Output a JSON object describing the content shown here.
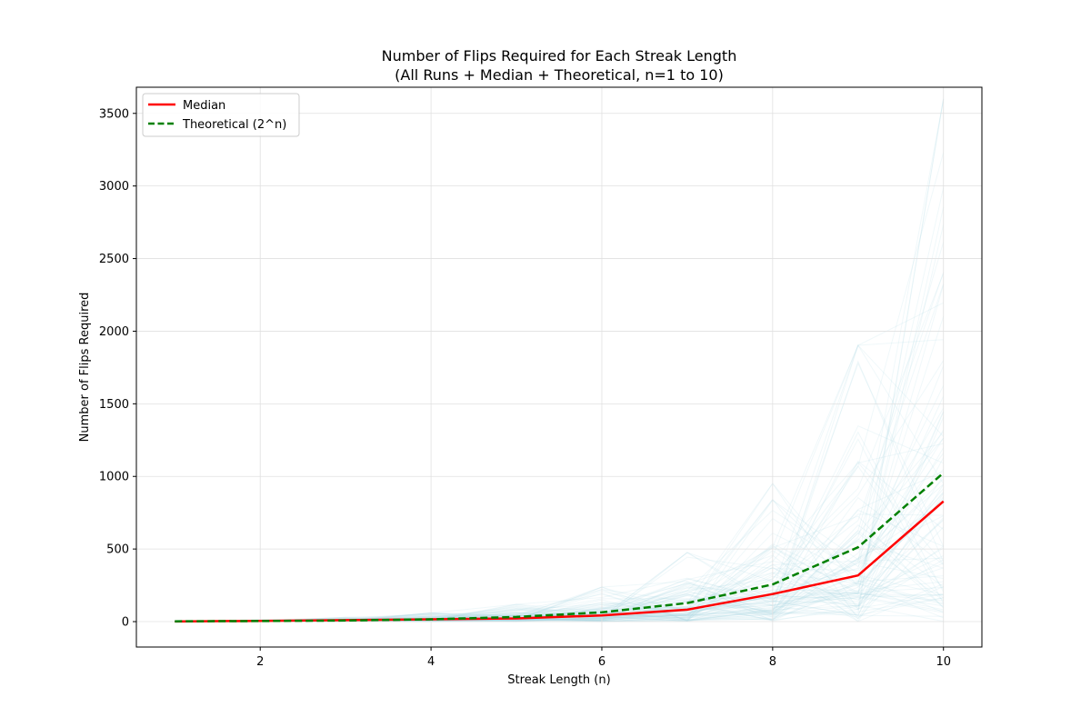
{
  "chart_data": {
    "type": "line",
    "title": "Number of Flips Required for Each Streak Length",
    "subtitle": "(All Runs + Median + Theoretical, n=1 to 10)",
    "xlabel": "Streak Length (n)",
    "ylabel": "Number of Flips Required",
    "xlim": [
      0.55,
      10.45
    ],
    "ylim": [
      -175,
      3680
    ],
    "x_ticks": [
      2,
      4,
      6,
      8,
      10
    ],
    "y_ticks": [
      0,
      500,
      1000,
      1500,
      2000,
      2500,
      3000,
      3500
    ],
    "grid": true,
    "legend_position": "top-left",
    "x": [
      1,
      2,
      3,
      4,
      5,
      6,
      7,
      8,
      9,
      10
    ],
    "series": [
      {
        "name": "Median",
        "color": "#ff0000",
        "style": "solid",
        "values": [
          1,
          5,
          10,
          16,
          22,
          42,
          82,
          190,
          318,
          828
        ]
      },
      {
        "name": "Theoretical (2^n)",
        "color": "#008000",
        "style": "dashed",
        "values": [
          2,
          4,
          8,
          16,
          32,
          64,
          128,
          256,
          512,
          1024
        ]
      }
    ],
    "background_runs": {
      "color": "#add8e6",
      "description_count": 100
    }
  }
}
